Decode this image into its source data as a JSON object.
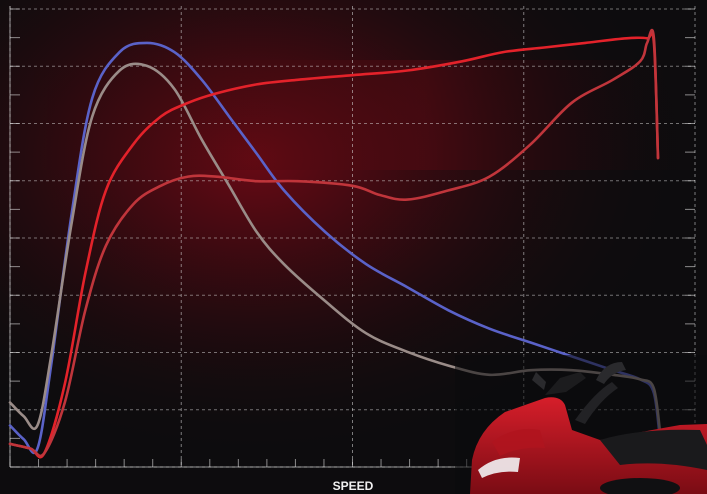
{
  "chart_data": {
    "type": "line",
    "title": "",
    "xlabel": "SPEED",
    "ylabel": "",
    "xlim": [
      0,
      100
    ],
    "ylim": [
      0,
      100
    ],
    "grid": true,
    "legend": "none",
    "series": [
      {
        "color": "#5a62c8",
        "x": [
          0,
          2,
          4,
          6,
          9,
          12,
          16,
          20,
          24,
          28,
          32,
          36,
          40,
          46,
          52,
          58,
          64,
          70,
          76,
          82,
          88,
          92,
          94,
          95
        ],
        "y": [
          9,
          6,
          4,
          22,
          55,
          80,
          90,
          92,
          90,
          84,
          76,
          68,
          60,
          51,
          44,
          39,
          34,
          30,
          27,
          24,
          21,
          19,
          16,
          4
        ]
      },
      {
        "color": "#9a8c88",
        "x": [
          0,
          2,
          4,
          6,
          9,
          12,
          16,
          20,
          24,
          28,
          32,
          36,
          40,
          46,
          52,
          58,
          64,
          70,
          76,
          82,
          88,
          92,
          94,
          95
        ],
        "y": [
          14,
          11,
          9,
          24,
          53,
          76,
          86,
          87,
          82,
          71,
          61,
          51,
          44,
          36,
          29,
          25,
          22,
          20,
          21,
          21,
          20,
          19,
          17,
          6
        ]
      },
      {
        "color": "#e3222a",
        "x": [
          0,
          3,
          5,
          8,
          11,
          14,
          18,
          22,
          26,
          30,
          36,
          42,
          50,
          58,
          66,
          72,
          78,
          84,
          90,
          93,
          94,
          94.6
        ],
        "y": [
          5,
          4,
          3,
          18,
          42,
          60,
          70,
          76,
          79,
          81,
          83,
          84,
          85,
          86,
          88,
          90,
          91,
          92,
          93,
          93,
          92,
          67
        ]
      },
      {
        "color": "#c0353b",
        "x": [
          0,
          3,
          5,
          8,
          11,
          14,
          18,
          22,
          26,
          30,
          36,
          42,
          50,
          54,
          58,
          64,
          70,
          76,
          82,
          88,
          92,
          93,
          94,
          94.6
        ],
        "y": [
          5,
          4,
          3,
          14,
          34,
          48,
          57,
          61,
          63,
          63,
          62,
          62,
          61,
          59,
          58,
          60,
          63,
          70,
          79,
          84,
          88,
          92,
          93,
          67
        ]
      }
    ]
  }
}
